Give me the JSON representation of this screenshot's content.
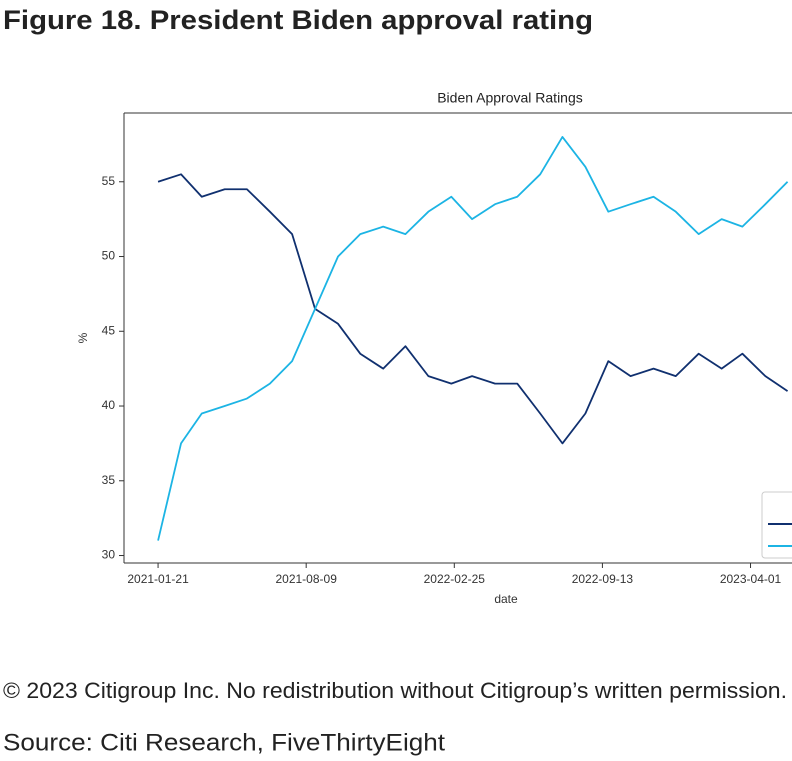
{
  "header": {
    "title": "Figure 18. President Biden approval rating"
  },
  "chart_data": {
    "type": "line",
    "title": "Biden Approval Ratings",
    "x_label": "date",
    "y_label": "%",
    "x": [
      "2021-01-21",
      "2021-02-21",
      "2021-03-21",
      "2021-04-21",
      "2021-05-21",
      "2021-06-21",
      "2021-07-21",
      "2021-08-21",
      "2021-09-21",
      "2021-10-21",
      "2021-11-21",
      "2021-12-21",
      "2022-01-21",
      "2022-02-21",
      "2022-03-21",
      "2022-04-21",
      "2022-05-21",
      "2022-06-21",
      "2022-07-21",
      "2022-08-21",
      "2022-09-21",
      "2022-10-21",
      "2022-11-21",
      "2022-12-21",
      "2023-01-21",
      "2023-02-21",
      "2023-03-21",
      "2023-04-21",
      "2023-05-21"
    ],
    "series": [
      {
        "color": "#10306f",
        "values": [
          55,
          55.5,
          54,
          54.5,
          54.5,
          53,
          51.5,
          46.5,
          45.5,
          43.5,
          42.5,
          44,
          42,
          41.5,
          42,
          41.5,
          41.5,
          39.5,
          37.5,
          39.5,
          43,
          42,
          42.5,
          42,
          43.5,
          42.5,
          43.5,
          42,
          41
        ]
      },
      {
        "color": "#1cb4e4",
        "values": [
          31,
          37.5,
          39.5,
          40,
          40.5,
          41.5,
          43,
          46.5,
          50,
          51.5,
          52,
          51.5,
          53,
          54,
          52.5,
          53.5,
          54,
          55.5,
          58,
          56,
          53,
          53.5,
          54,
          53,
          51.5,
          52.5,
          52,
          53.5,
          55
        ]
      }
    ],
    "xlim": [
      "2020-12-06",
      "2023-05-27"
    ],
    "xticks": [
      "2021-01-21",
      "2021-08-09",
      "2022-02-25",
      "2022-09-13",
      "2023-04-01"
    ],
    "ylim": [
      29.5,
      59.6
    ],
    "yticks": [
      30,
      35,
      40,
      45,
      50,
      55
    ],
    "legend": "lower right"
  },
  "footer": {
    "copyright": "© 2023 Citigroup Inc. No redistribution without Citigroup’s written permission.",
    "source": "Source: Citi Research, FiveThirtyEight"
  }
}
